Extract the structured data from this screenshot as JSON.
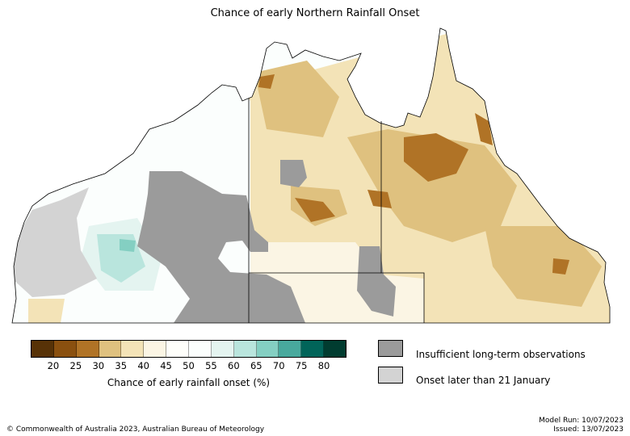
{
  "title": "Chance of early Northern Rainfall Onset",
  "colorbar": {
    "colors": [
      "#573207",
      "#8a500f",
      "#b07326",
      "#dfc17f",
      "#f3e3b7",
      "#fbf5e4",
      "#fefefa",
      "#fbfefd",
      "#e4f4f0",
      "#b9e5dd",
      "#84cfc2",
      "#48a99d",
      "#016459",
      "#013c30"
    ],
    "ticks": [
      "20",
      "25",
      "30",
      "35",
      "40",
      "45",
      "50",
      "55",
      "60",
      "65",
      "70",
      "75",
      "80"
    ],
    "label": "Chance of early rainfall onset (%)"
  },
  "legend": [
    {
      "label": "Insufficient long-term observations",
      "color": "#9b9b9b"
    },
    {
      "label": "Onset later than 21 January",
      "color": "#d3d3d3"
    }
  ],
  "copyright": "© Commonwealth of Australia 2023, Australian Bureau of Meteorology",
  "model_run": "Model Run: 10/07/2023",
  "issued": "Issued: 13/07/2023"
}
